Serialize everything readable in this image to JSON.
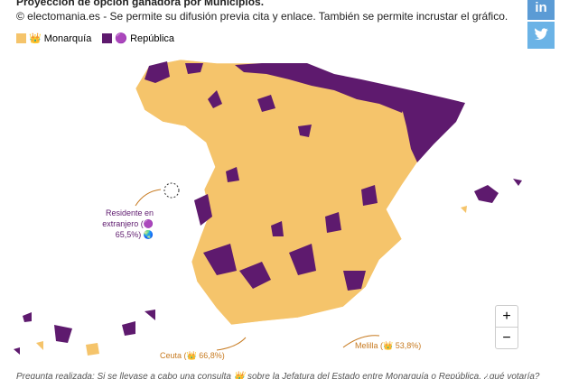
{
  "header": {
    "title": "Proyección de opción ganadora por Municipios.",
    "subtitle": "© electomania.es - Se permite su difusión previa cita y enlace. También se permite incrustar el gráfico."
  },
  "legend": [
    {
      "label": "👑 Monarquía",
      "color": "#f5c46b"
    },
    {
      "label": "🟣 República",
      "color": "#5e1a6e"
    }
  ],
  "annotations": {
    "abroad": "Residente en extranjero (🟣 65,5%) 🌏",
    "ceuta": "Ceuta (👑 66,8%)",
    "melilla": "Melilla (👑 53,8%)"
  },
  "footer": "Pregunta realizada: Si se llevase a cabo una consulta 👑 sobre la Jefatura del Estado entre Monarquía o República, ¿qué votaría?",
  "share": {
    "linkedin": "in"
  },
  "zoom": {
    "in": "+",
    "out": "−"
  }
}
